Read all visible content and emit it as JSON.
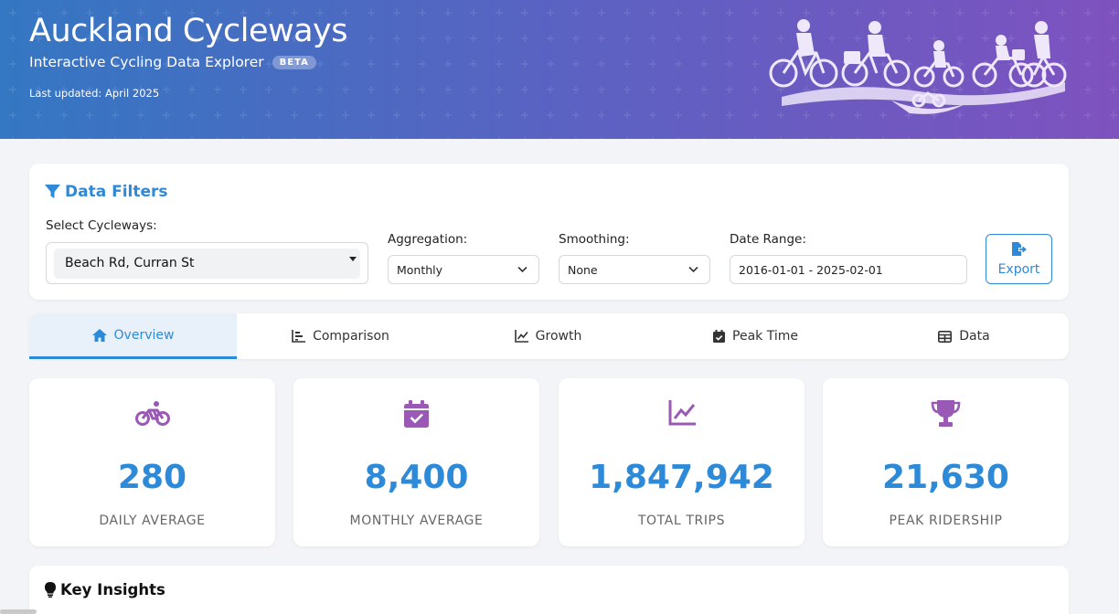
{
  "header": {
    "title": "Auckland Cycleways",
    "subtitle": "Interactive Cycling Data Explorer",
    "badge": "BETA",
    "updated": "Last updated: April 2025"
  },
  "filters": {
    "title": "Data Filters",
    "cycleways": {
      "label": "Select Cycleways:",
      "value": "Beach Rd, Curran St"
    },
    "aggregation": {
      "label": "Aggregation:",
      "value": "Monthly"
    },
    "smoothing": {
      "label": "Smoothing:",
      "value": "None"
    },
    "date_range": {
      "label": "Date Range:",
      "value": "2016-01-01 - 2025-02-01"
    },
    "export_label": "Export"
  },
  "tabs": [
    {
      "label": "Overview",
      "icon": "home-icon",
      "active": true
    },
    {
      "label": "Comparison",
      "icon": "bar-chart-icon"
    },
    {
      "label": "Growth",
      "icon": "line-chart-icon"
    },
    {
      "label": "Peak Time",
      "icon": "calendar-check-icon"
    },
    {
      "label": "Data",
      "icon": "table-icon"
    }
  ],
  "stats": [
    {
      "value": "280",
      "label": "DAILY AVERAGE",
      "icon": "bicycle-icon"
    },
    {
      "value": "8,400",
      "label": "MONTHLY AVERAGE",
      "icon": "calendar-check-icon"
    },
    {
      "value": "1,847,942",
      "label": "TOTAL TRIPS",
      "icon": "line-chart-icon"
    },
    {
      "value": "21,630",
      "label": "PEAK RIDERSHIP",
      "icon": "trophy-icon"
    }
  ],
  "insights": {
    "title": "Key Insights"
  },
  "colors": {
    "accent": "#2d8ad8",
    "icon": "#9b59b6",
    "header_start": "#3477c2",
    "header_end": "#7e52bf"
  }
}
